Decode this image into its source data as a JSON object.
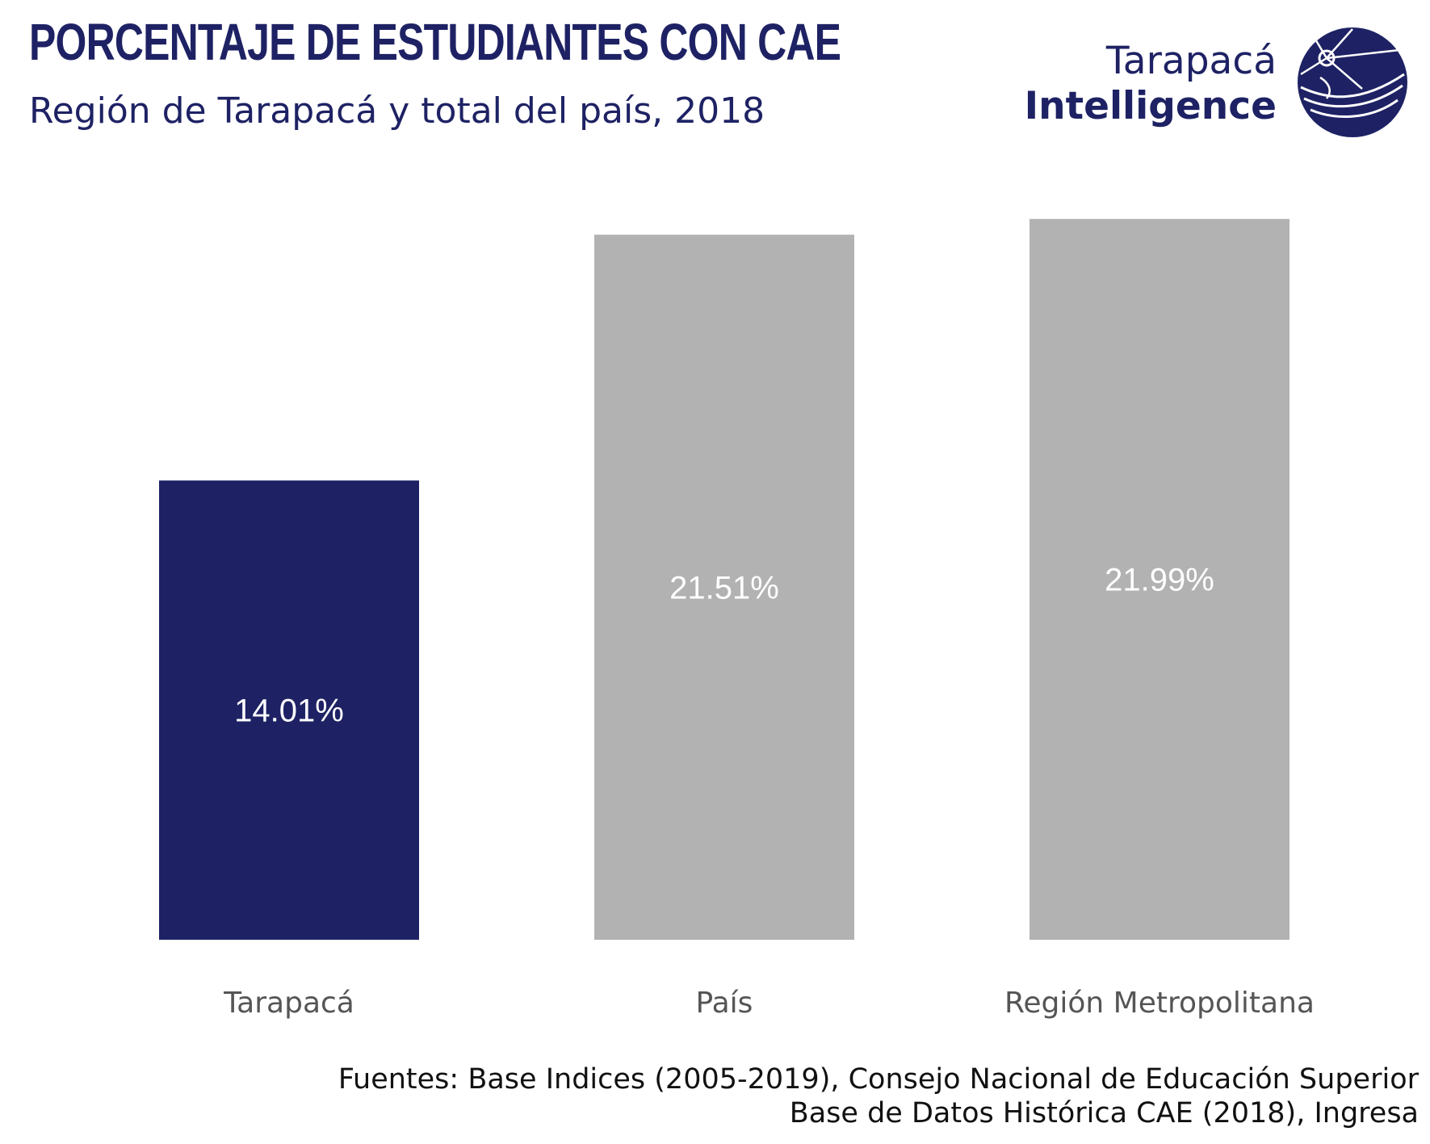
{
  "header": {
    "title": "PORCENTAJE DE ESTUDIANTES CON CAE",
    "subtitle": "Región de Tarapacá y total del país, 2018"
  },
  "logo": {
    "line1": "Tarapacá",
    "line2": "Intelligence",
    "color": "#1e2264"
  },
  "chart_data": {
    "type": "bar",
    "title": "PORCENTAJE DE ESTUDIANTES CON CAE",
    "subtitle": "Región de Tarapacá y total del país, 2018",
    "categories": [
      "Tarapacá",
      "País",
      "Región Metropolitana"
    ],
    "values": [
      14.01,
      21.51,
      21.99
    ],
    "value_labels": [
      "14.01%",
      "21.51%",
      "21.99%"
    ],
    "colors": [
      "#1e2264",
      "#b2b2b2",
      "#b2b2b2"
    ],
    "xlabel": "",
    "ylabel": "",
    "ylim": [
      0,
      22
    ],
    "grid": false,
    "legend": "none"
  },
  "footer": {
    "source_line1": "Fuentes: Base Indices (2005-2019), Consejo Nacional de Educación Superior",
    "source_line2": "Base de Datos Histórica CAE (2018), Ingresa"
  }
}
